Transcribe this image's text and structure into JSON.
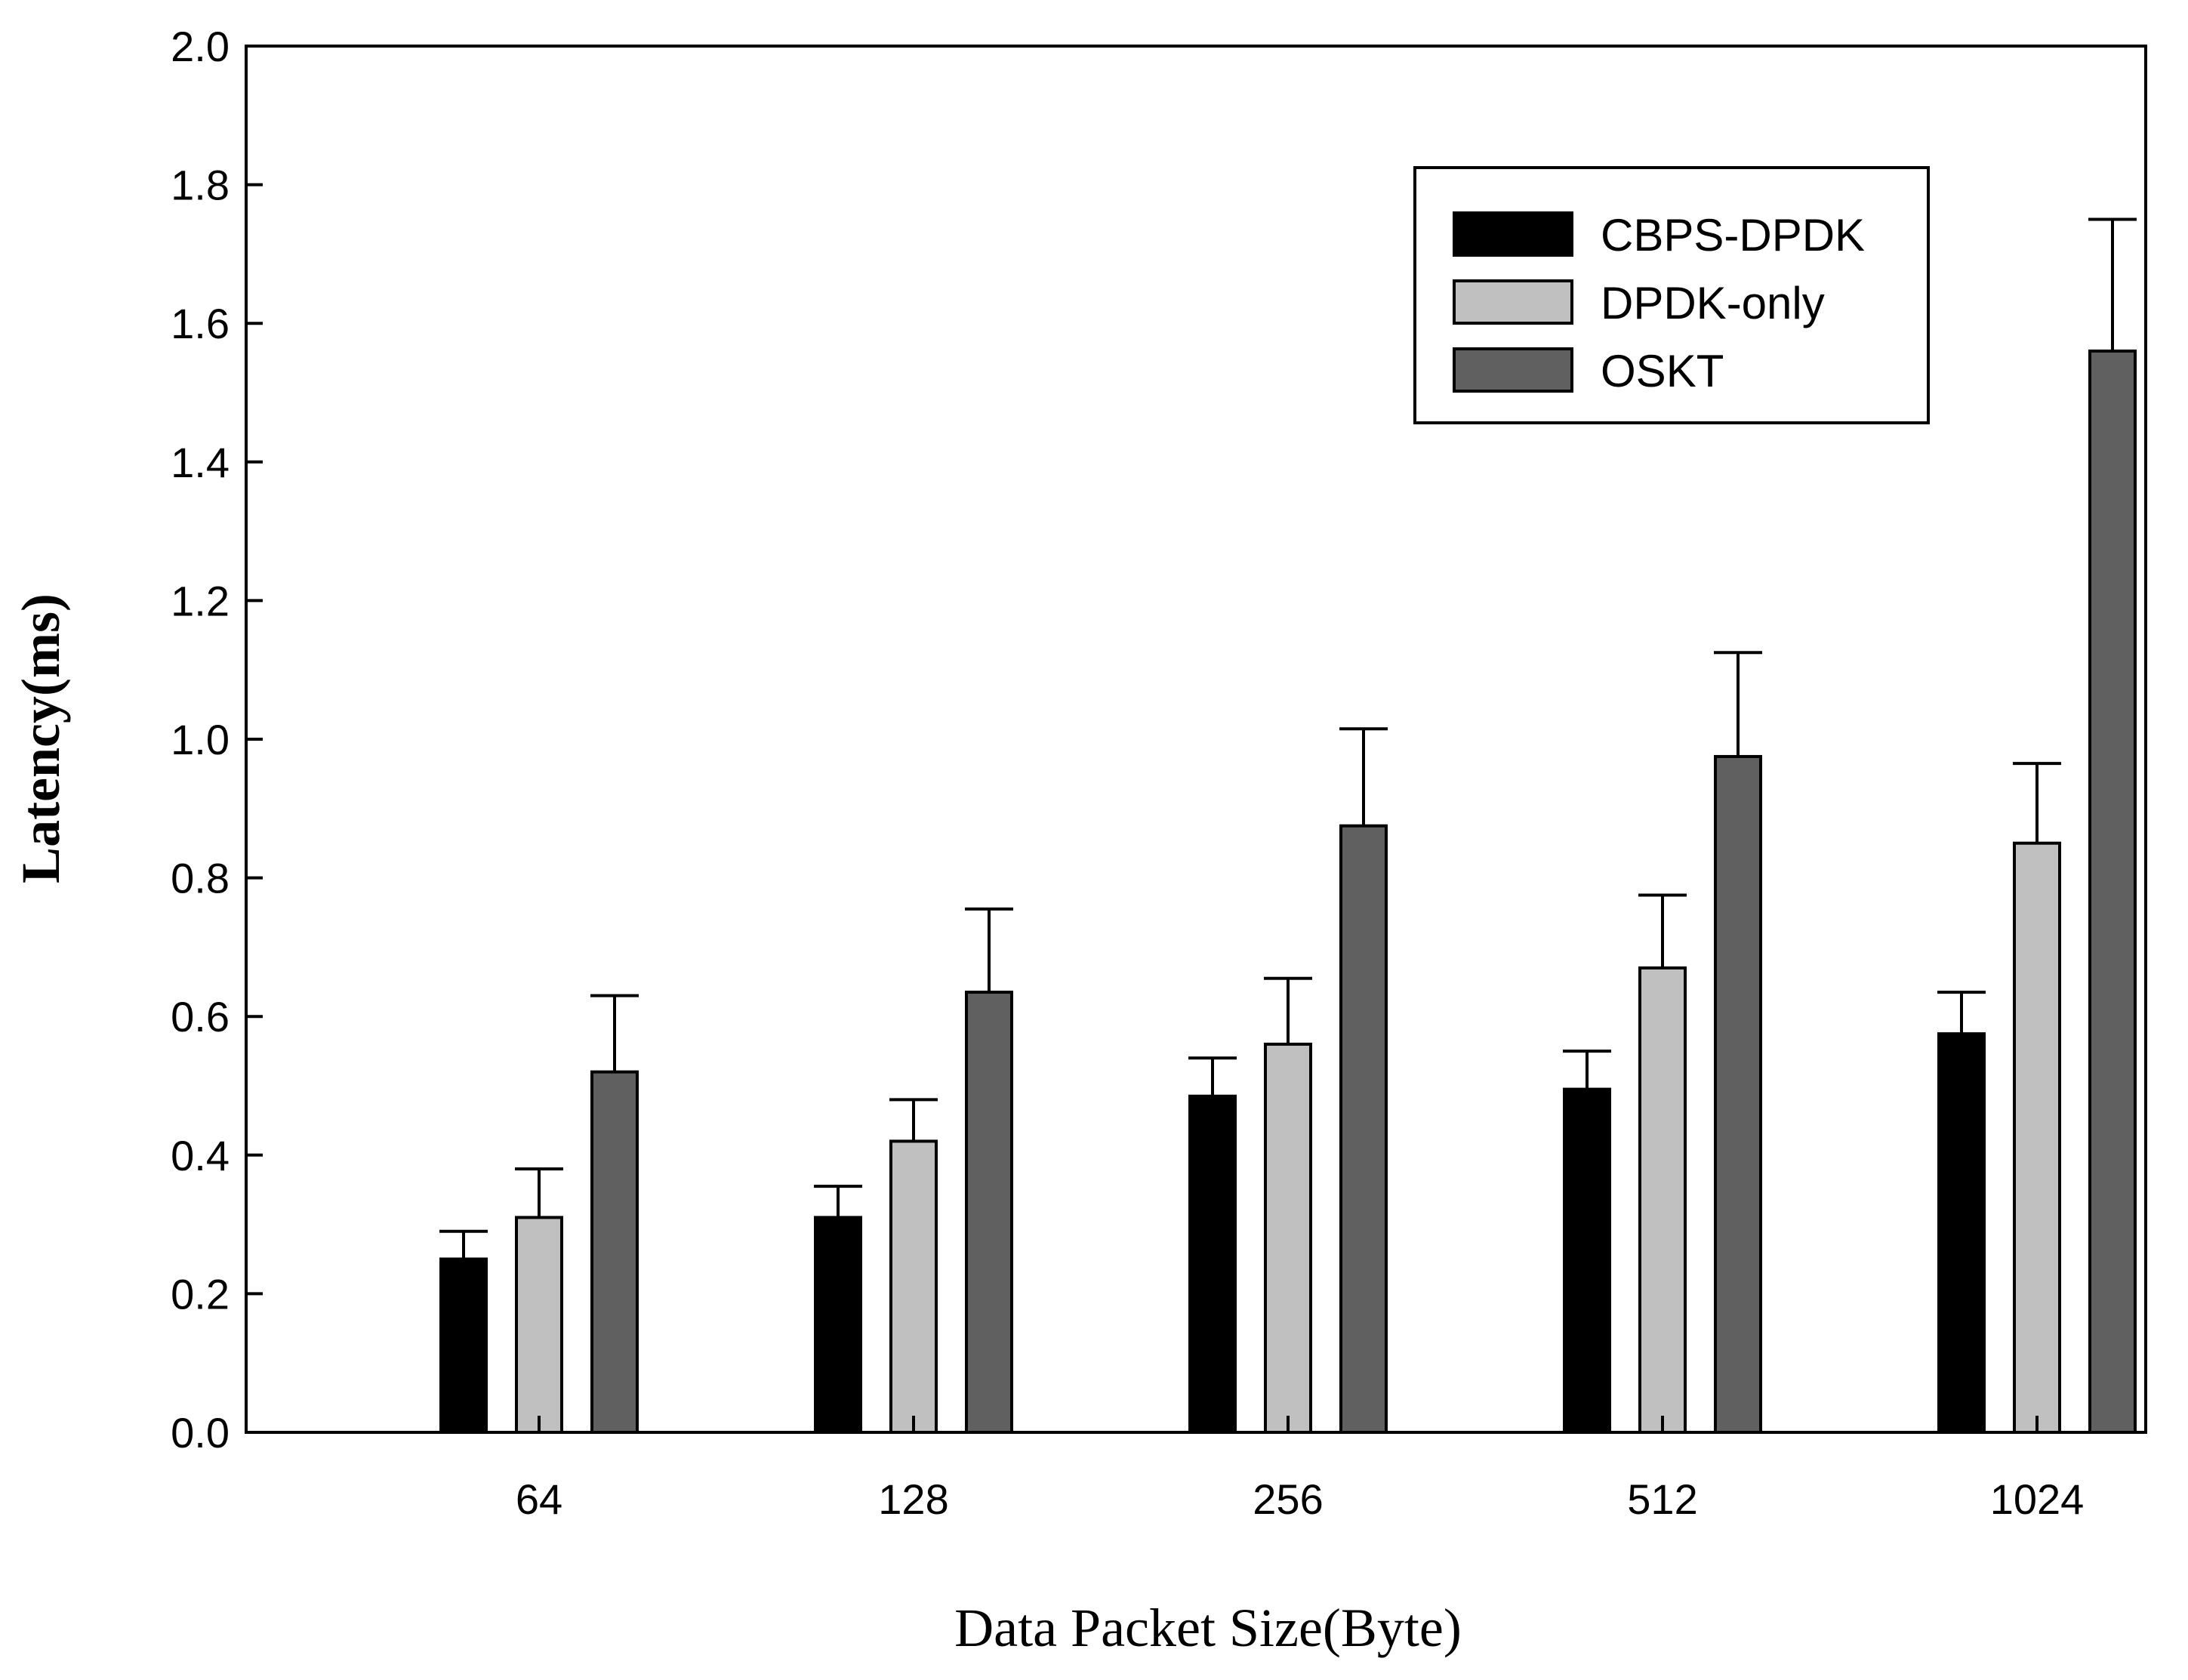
{
  "chart_data": {
    "type": "bar",
    "title": "",
    "xlabel": "Data Packet Size(Byte)",
    "ylabel": "Latency(ms)",
    "ylim": [
      0,
      2.0
    ],
    "yticks": [
      0.0,
      0.2,
      0.4,
      0.6,
      0.8,
      1.0,
      1.2,
      1.4,
      1.6,
      1.8,
      2.0
    ],
    "ytick_labels": [
      "0.0",
      "0.2",
      "0.4",
      "0.6",
      "0.8",
      "1.0",
      "1.2",
      "1.4",
      "1.6",
      "1.8",
      "2.0"
    ],
    "categories": [
      "64",
      "128",
      "256",
      "512",
      "1024"
    ],
    "grid": false,
    "legend_position": "top-right",
    "series": [
      {
        "name": "CBPS-DPDK",
        "color": "#000000",
        "values": [
          0.25,
          0.31,
          0.485,
          0.495,
          0.575
        ],
        "errors": [
          0.04,
          0.045,
          0.055,
          0.055,
          0.06
        ]
      },
      {
        "name": "DPDK-only",
        "color": "#c0c0c0",
        "values": [
          0.31,
          0.42,
          0.56,
          0.67,
          0.85
        ],
        "errors": [
          0.07,
          0.06,
          0.095,
          0.105,
          0.115
        ]
      },
      {
        "name": "OSKT",
        "color": "#606060",
        "values": [
          0.52,
          0.635,
          0.875,
          0.975,
          1.56
        ],
        "errors": [
          0.11,
          0.12,
          0.14,
          0.15,
          0.19
        ]
      }
    ]
  }
}
